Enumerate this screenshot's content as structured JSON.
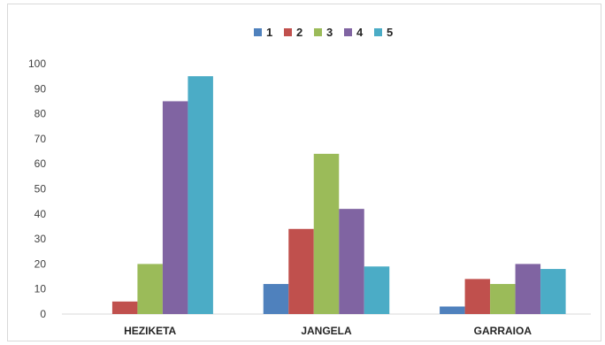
{
  "chart_data": {
    "type": "bar",
    "categories": [
      "HEZIKETA",
      "JANGELA",
      "GARRAIOA"
    ],
    "series": [
      {
        "name": "1",
        "values": [
          0,
          12,
          3
        ]
      },
      {
        "name": "2",
        "values": [
          5,
          34,
          14
        ]
      },
      {
        "name": "3",
        "values": [
          20,
          64,
          12
        ]
      },
      {
        "name": "4",
        "values": [
          85,
          42,
          20
        ]
      },
      {
        "name": "5",
        "values": [
          95,
          19,
          18
        ]
      }
    ],
    "ylim": [
      0,
      100
    ],
    "yticks": [
      "0",
      "10",
      "20",
      "30",
      "40",
      "50",
      "60",
      "70",
      "80",
      "90",
      "100"
    ],
    "grid": false,
    "legend_position": "top-center",
    "colors": [
      "#4f81bd",
      "#c0504d",
      "#9bbb59",
      "#8064a2",
      "#4bacc6"
    ]
  }
}
